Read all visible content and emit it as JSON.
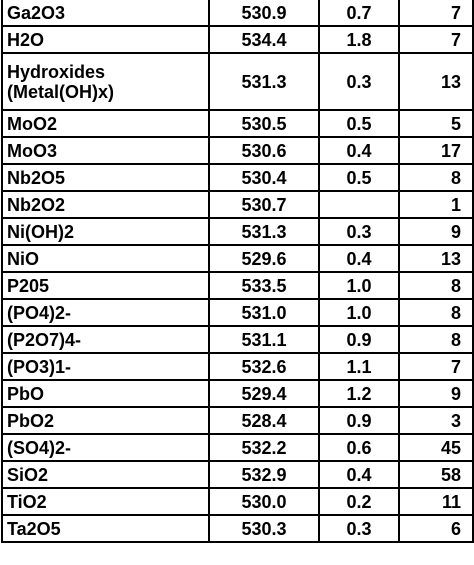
{
  "table": {
    "rows": [
      {
        "name": [
          "Ga2O3"
        ],
        "be": "530.9",
        "fwhm": "0.7",
        "refs": "7"
      },
      {
        "name": [
          "H2O"
        ],
        "be": "534.4",
        "fwhm": "1.8",
        "refs": "7"
      },
      {
        "name": [
          "Hydroxides",
          "(Metal(OH)x)"
        ],
        "be": "531.3",
        "fwhm": "0.3",
        "refs": "13"
      },
      {
        "name": [
          "MoO2"
        ],
        "be": "530.5",
        "fwhm": "0.5",
        "refs": "5"
      },
      {
        "name": [
          "MoO3"
        ],
        "be": "530.6",
        "fwhm": "0.4",
        "refs": "17"
      },
      {
        "name": [
          "Nb2O5"
        ],
        "be": "530.4",
        "fwhm": "0.5",
        "refs": "8"
      },
      {
        "name": [
          "Nb2O2"
        ],
        "be": "530.7",
        "fwhm": "",
        "refs": "1"
      },
      {
        "name": [
          "Ni(OH)2"
        ],
        "be": "531.3",
        "fwhm": "0.3",
        "refs": "9"
      },
      {
        "name": [
          "NiO"
        ],
        "be": "529.6",
        "fwhm": "0.4",
        "refs": "13"
      },
      {
        "name": [
          "P205"
        ],
        "be": "533.5",
        "fwhm": "1.0",
        "refs": "8"
      },
      {
        "name": [
          "(PO4)2-"
        ],
        "be": "531.0",
        "fwhm": "1.0",
        "refs": "8"
      },
      {
        "name": [
          "(P2O7)4-"
        ],
        "be": "531.1",
        "fwhm": "0.9",
        "refs": "8"
      },
      {
        "name": [
          "(PO3)1-"
        ],
        "be": "532.6",
        "fwhm": "1.1",
        "refs": "7"
      },
      {
        "name": [
          "PbO"
        ],
        "be": "529.4",
        "fwhm": "1.2",
        "refs": "9"
      },
      {
        "name": [
          "PbO2"
        ],
        "be": "528.4",
        "fwhm": "0.9",
        "refs": "3"
      },
      {
        "name": [
          "(SO4)2-"
        ],
        "be": "532.2",
        "fwhm": "0.6",
        "refs": "45"
      },
      {
        "name": [
          "SiO2"
        ],
        "be": "532.9",
        "fwhm": "0.4",
        "refs": "58"
      },
      {
        "name": [
          "TiO2"
        ],
        "be": "530.0",
        "fwhm": "0.2",
        "refs": "11"
      },
      {
        "name": [
          "Ta2O5"
        ],
        "be": "530.3",
        "fwhm": "0.3",
        "refs": "6"
      }
    ]
  }
}
